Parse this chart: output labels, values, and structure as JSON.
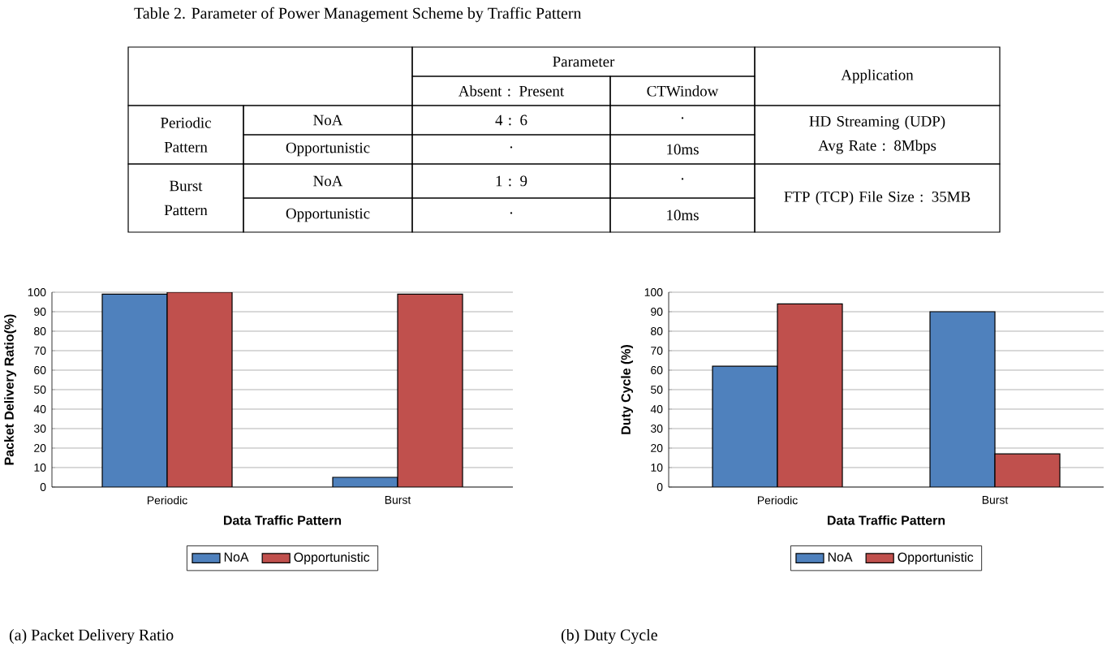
{
  "chart_data": [
    {
      "type": "other",
      "title": "Table 2. Parameter of Power Management Scheme by Traffic Pattern",
      "annotations": [
        "Parameter",
        "Application",
        "Absent : Present",
        "CTWindow",
        "Periodic Pattern",
        "NoA",
        "4 : 6",
        "·",
        "HD Streaming (UDP) Avg Rate : 8Mbps",
        "Opportunistic",
        "·",
        "10ms",
        "Burst Pattern",
        "NoA",
        "1 : 9",
        "·",
        "FTP (TCP) File Size : 35MB",
        "Opportunistic",
        "·",
        "10ms"
      ]
    },
    {
      "type": "bar",
      "categories": [
        "Periodic",
        "Burst"
      ],
      "series": [
        {
          "name": "NoA",
          "color": "#4f81bd",
          "values": [
            99,
            5
          ]
        },
        {
          "name": "Opportunistic",
          "color": "#c0504d",
          "values": [
            100,
            99
          ]
        }
      ],
      "xlabel": "Data Traffic Pattern",
      "ylabel": "Packet Delivery Ratio(%)",
      "ylim": [
        0,
        100
      ],
      "yticks": [
        0,
        10,
        20,
        30,
        40,
        50,
        60,
        70,
        80,
        90,
        100
      ],
      "grid": "y",
      "legend": "bottom",
      "annotations": [
        "(a) Packet Delivery Ratio"
      ]
    },
    {
      "type": "bar",
      "categories": [
        "Periodic",
        "Burst"
      ],
      "series": [
        {
          "name": "NoA",
          "color": "#4f81bd",
          "values": [
            62,
            90
          ]
        },
        {
          "name": "Opportunistic",
          "color": "#c0504d",
          "values": [
            94,
            17
          ]
        }
      ],
      "xlabel": "Data Traffic Pattern",
      "ylabel": "Duty Cycle (%)",
      "ylim": [
        0,
        100
      ],
      "yticks": [
        0,
        10,
        20,
        30,
        40,
        50,
        60,
        70,
        80,
        90,
        100
      ],
      "grid": "y",
      "legend": "bottom",
      "annotations": [
        "(b) Duty Cycle"
      ]
    }
  ]
}
